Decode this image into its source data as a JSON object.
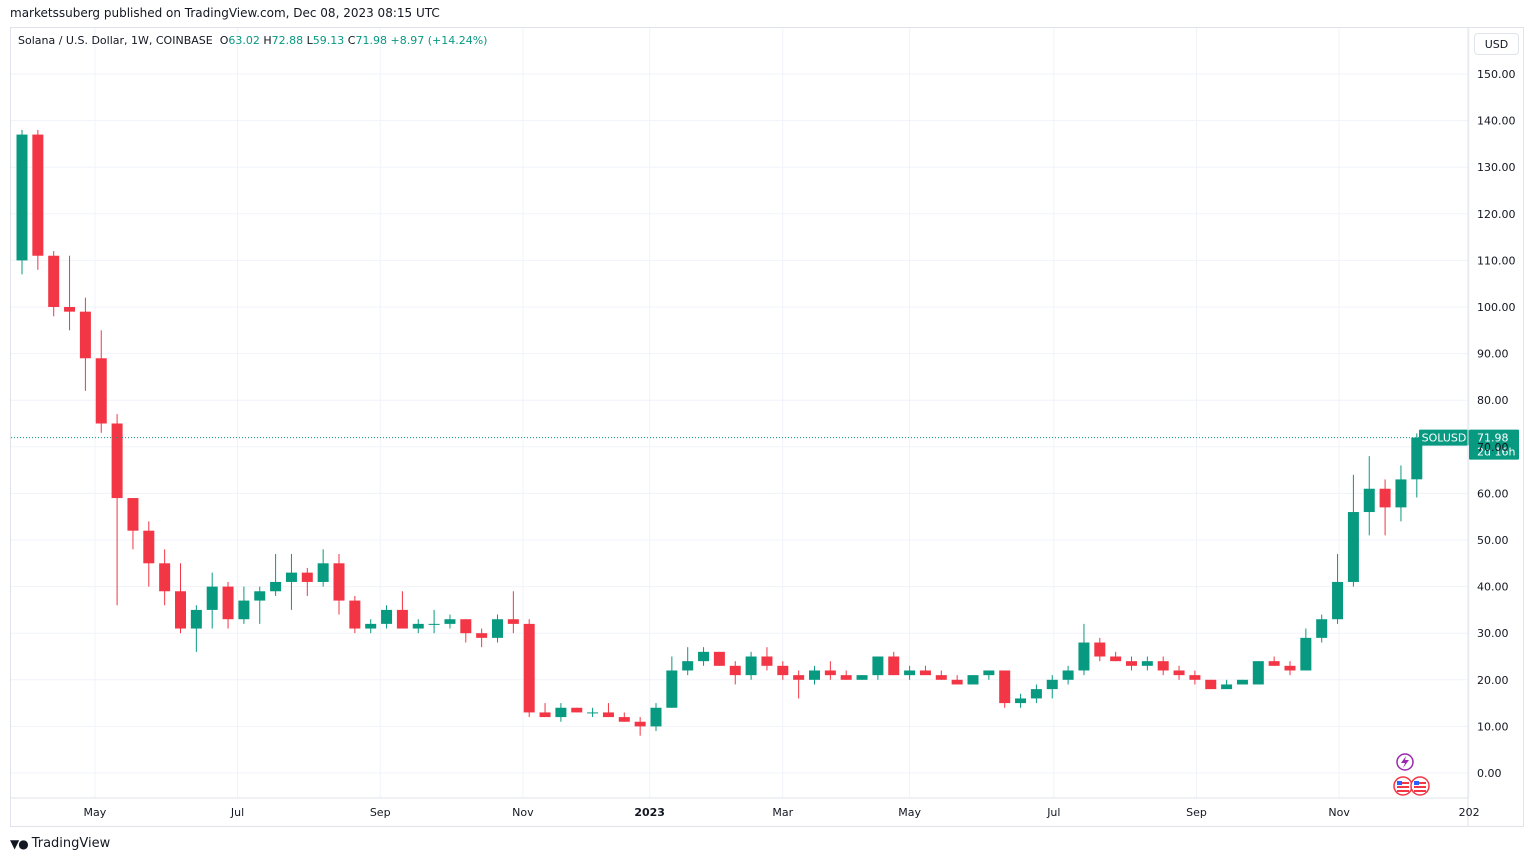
{
  "header": {
    "published": "marketssuberg published on TradingView.com, Dec 08, 2023 08:15 UTC"
  },
  "legend": {
    "symbol": "Solana / U.S. Dollar, 1W, COINBASE",
    "open_label": "O",
    "open": "63.02",
    "high_label": "H",
    "high": "72.88",
    "low_label": "L",
    "low": "59.13",
    "close_label": "C",
    "close": "71.98",
    "change": "+8.97 (+14.24%)"
  },
  "currency_button": "USD",
  "price_tag": {
    "symbol": "SOLUSD",
    "price": "71.98",
    "countdown": "2d 16h"
  },
  "footer": {
    "brand": "TradingView"
  },
  "colors": {
    "up": "#089981",
    "down": "#f23645",
    "grid": "#f0f3fa",
    "axis_text": "#131722",
    "event_purple": "#9c27b0",
    "event_red": "#f23645"
  },
  "chart_data": {
    "type": "candlestick",
    "title": "Solana / U.S. Dollar, 1W, COINBASE",
    "ylabel": "USD",
    "ylim": [
      -5,
      156
    ],
    "y_ticks": [
      0,
      10,
      20,
      30,
      40,
      50,
      60,
      70,
      80,
      90,
      100,
      110,
      120,
      130,
      140,
      150
    ],
    "y_tick_labels": [
      "0.00",
      "10.00",
      "20.00",
      "30.00",
      "40.00",
      "50.00",
      "60.00",
      "70.00",
      "80.00",
      "90.00",
      "100.00",
      "110.00",
      "120.00",
      "130.00",
      "140.00",
      "150.00"
    ],
    "x_tick_labels": [
      {
        "label": "May",
        "week": 4.6
      },
      {
        "label": "Jul",
        "week": 13.6
      },
      {
        "label": "Sep",
        "week": 22.6
      },
      {
        "label": "Nov",
        "week": 31.6
      },
      {
        "label": "2023",
        "week": 39.6,
        "bold": true
      },
      {
        "label": "Mar",
        "week": 48.0
      },
      {
        "label": "May",
        "week": 56.0
      },
      {
        "label": "Jul",
        "week": 65.1
      },
      {
        "label": "Sep",
        "week": 74.1
      },
      {
        "label": "Nov",
        "week": 83.1
      },
      {
        "label": "202",
        "week": 91.3
      }
    ],
    "last_price": 71.98,
    "candles": [
      {
        "o": 110,
        "h": 138,
        "l": 107,
        "c": 137
      },
      {
        "o": 137,
        "h": 138,
        "l": 108,
        "c": 111
      },
      {
        "o": 111,
        "h": 112,
        "l": 98,
        "c": 100
      },
      {
        "o": 100,
        "h": 111,
        "l": 95,
        "c": 99
      },
      {
        "o": 99,
        "h": 102,
        "l": 82,
        "c": 89
      },
      {
        "o": 89,
        "h": 95,
        "l": 73,
        "c": 75
      },
      {
        "o": 75,
        "h": 77,
        "l": 36,
        "c": 59
      },
      {
        "o": 59,
        "h": 59,
        "l": 48,
        "c": 52
      },
      {
        "o": 52,
        "h": 54,
        "l": 40,
        "c": 45
      },
      {
        "o": 45,
        "h": 48,
        "l": 36,
        "c": 39
      },
      {
        "o": 39,
        "h": 45,
        "l": 30,
        "c": 31
      },
      {
        "o": 31,
        "h": 36,
        "l": 26,
        "c": 35
      },
      {
        "o": 35,
        "h": 43,
        "l": 31,
        "c": 40
      },
      {
        "o": 40,
        "h": 41,
        "l": 31,
        "c": 33
      },
      {
        "o": 33,
        "h": 40,
        "l": 32,
        "c": 37
      },
      {
        "o": 37,
        "h": 40,
        "l": 32,
        "c": 39
      },
      {
        "o": 39,
        "h": 47,
        "l": 38,
        "c": 41
      },
      {
        "o": 41,
        "h": 47,
        "l": 35,
        "c": 43
      },
      {
        "o": 43,
        "h": 44,
        "l": 38,
        "c": 41
      },
      {
        "o": 41,
        "h": 48,
        "l": 40,
        "c": 45
      },
      {
        "o": 45,
        "h": 47,
        "l": 34,
        "c": 37
      },
      {
        "o": 37,
        "h": 38,
        "l": 30,
        "c": 31
      },
      {
        "o": 31,
        "h": 33,
        "l": 30,
        "c": 32
      },
      {
        "o": 32,
        "h": 36,
        "l": 31,
        "c": 35
      },
      {
        "o": 35,
        "h": 39,
        "l": 31,
        "c": 31
      },
      {
        "o": 31,
        "h": 33,
        "l": 30,
        "c": 32
      },
      {
        "o": 32,
        "h": 35,
        "l": 30,
        "c": 32
      },
      {
        "o": 32,
        "h": 34,
        "l": 31,
        "c": 33
      },
      {
        "o": 33,
        "h": 33,
        "l": 28,
        "c": 30
      },
      {
        "o": 30,
        "h": 31,
        "l": 27,
        "c": 29
      },
      {
        "o": 29,
        "h": 34,
        "l": 28,
        "c": 33
      },
      {
        "o": 33,
        "h": 39,
        "l": 30,
        "c": 32
      },
      {
        "o": 32,
        "h": 33,
        "l": 12,
        "c": 13
      },
      {
        "o": 13,
        "h": 15,
        "l": 12,
        "c": 12
      },
      {
        "o": 12,
        "h": 15,
        "l": 11,
        "c": 14
      },
      {
        "o": 14,
        "h": 14,
        "l": 13,
        "c": 13
      },
      {
        "o": 13,
        "h": 14,
        "l": 12,
        "c": 13
      },
      {
        "o": 13,
        "h": 15,
        "l": 12,
        "c": 12
      },
      {
        "o": 12,
        "h": 13,
        "l": 11,
        "c": 11
      },
      {
        "o": 11,
        "h": 12,
        "l": 8,
        "c": 10
      },
      {
        "o": 10,
        "h": 15,
        "l": 9,
        "c": 14
      },
      {
        "o": 14,
        "h": 25,
        "l": 14,
        "c": 22
      },
      {
        "o": 22,
        "h": 27,
        "l": 21,
        "c": 24
      },
      {
        "o": 24,
        "h": 27,
        "l": 23,
        "c": 26
      },
      {
        "o": 26,
        "h": 26,
        "l": 23,
        "c": 23
      },
      {
        "o": 23,
        "h": 24,
        "l": 19,
        "c": 21
      },
      {
        "o": 21,
        "h": 26,
        "l": 20,
        "c": 25
      },
      {
        "o": 25,
        "h": 27,
        "l": 22,
        "c": 23
      },
      {
        "o": 23,
        "h": 24,
        "l": 20,
        "c": 21
      },
      {
        "o": 21,
        "h": 22,
        "l": 16,
        "c": 20
      },
      {
        "o": 20,
        "h": 23,
        "l": 19,
        "c": 22
      },
      {
        "o": 22,
        "h": 24,
        "l": 20,
        "c": 21
      },
      {
        "o": 21,
        "h": 22,
        "l": 20,
        "c": 20
      },
      {
        "o": 20,
        "h": 21,
        "l": 20,
        "c": 21
      },
      {
        "o": 21,
        "h": 25,
        "l": 20,
        "c": 25
      },
      {
        "o": 25,
        "h": 26,
        "l": 21,
        "c": 21
      },
      {
        "o": 21,
        "h": 23,
        "l": 20,
        "c": 22
      },
      {
        "o": 22,
        "h": 23,
        "l": 21,
        "c": 21
      },
      {
        "o": 21,
        "h": 22,
        "l": 20,
        "c": 20
      },
      {
        "o": 20,
        "h": 21,
        "l": 19,
        "c": 19
      },
      {
        "o": 19,
        "h": 21,
        "l": 19,
        "c": 21
      },
      {
        "o": 21,
        "h": 22,
        "l": 20,
        "c": 22
      },
      {
        "o": 22,
        "h": 22,
        "l": 14,
        "c": 15
      },
      {
        "o": 15,
        "h": 17,
        "l": 14,
        "c": 16
      },
      {
        "o": 16,
        "h": 19,
        "l": 15,
        "c": 18
      },
      {
        "o": 18,
        "h": 21,
        "l": 16,
        "c": 20
      },
      {
        "o": 20,
        "h": 23,
        "l": 19,
        "c": 22
      },
      {
        "o": 22,
        "h": 32,
        "l": 21,
        "c": 28
      },
      {
        "o": 28,
        "h": 29,
        "l": 24,
        "c": 25
      },
      {
        "o": 25,
        "h": 26,
        "l": 24,
        "c": 24
      },
      {
        "o": 24,
        "h": 25,
        "l": 22,
        "c": 23
      },
      {
        "o": 23,
        "h": 25,
        "l": 22,
        "c": 24
      },
      {
        "o": 24,
        "h": 25,
        "l": 21,
        "c": 22
      },
      {
        "o": 22,
        "h": 23,
        "l": 20,
        "c": 21
      },
      {
        "o": 21,
        "h": 22,
        "l": 19,
        "c": 20
      },
      {
        "o": 20,
        "h": 20,
        "l": 18,
        "c": 18
      },
      {
        "o": 18,
        "h": 20,
        "l": 18,
        "c": 19
      },
      {
        "o": 19,
        "h": 20,
        "l": 19,
        "c": 20
      },
      {
        "o": 19,
        "h": 24,
        "l": 19,
        "c": 24
      },
      {
        "o": 24,
        "h": 25,
        "l": 23,
        "c": 23
      },
      {
        "o": 23,
        "h": 24,
        "l": 21,
        "c": 22
      },
      {
        "o": 22,
        "h": 31,
        "l": 22,
        "c": 29
      },
      {
        "o": 29,
        "h": 34,
        "l": 28,
        "c": 33
      },
      {
        "o": 33,
        "h": 47,
        "l": 32,
        "c": 41
      },
      {
        "o": 41,
        "h": 64,
        "l": 40,
        "c": 56
      },
      {
        "o": 56,
        "h": 68,
        "l": 51,
        "c": 61
      },
      {
        "o": 61,
        "h": 63,
        "l": 51,
        "c": 57
      },
      {
        "o": 57,
        "h": 66,
        "l": 54,
        "c": 63
      },
      {
        "o": 63.02,
        "h": 72.88,
        "l": 59.13,
        "c": 71.98
      }
    ]
  }
}
